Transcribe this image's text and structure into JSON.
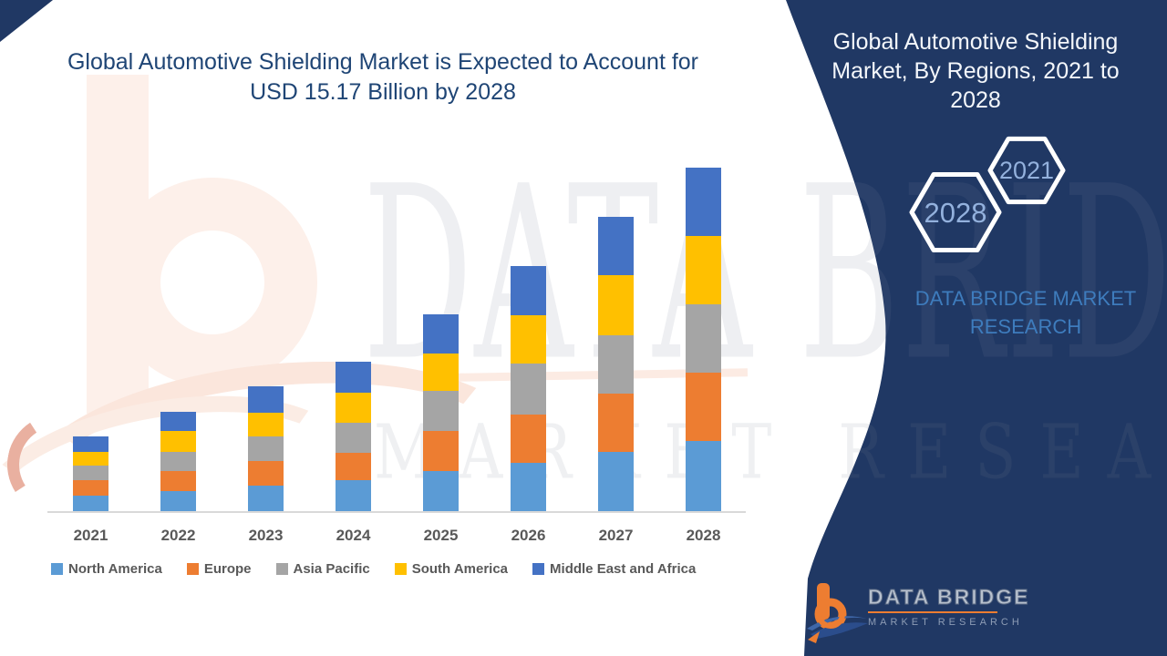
{
  "title": {
    "line1": "Global Automotive Shielding Market is Expected to Account for",
    "line2": "USD 15.17 Billion by 2028"
  },
  "panel": {
    "heading_line1": "Global Automotive Shielding",
    "heading_line2": "Market, By Regions,  2021 to",
    "heading_line3": "2028",
    "hexagon_back_label": "2028",
    "hexagon_front_label": "2021",
    "brand_text": "DATA BRIDGE MARKET RESEARCH",
    "panel_color": "#203864",
    "hexagon_label_color": "#93b1dd",
    "brand_text_color": "#3e7cbd"
  },
  "watermark": {
    "big_text": "DATA BRIDGE",
    "sub_text": "MARKET RESEARCH"
  },
  "footer_logo": {
    "name": "DATA BRIDGE",
    "subtitle": "MARKET RESEARCH"
  },
  "chart_data": {
    "type": "bar",
    "stacked": true,
    "title": "Global Automotive Shielding Market, By Regions, 2021 to 2028",
    "unit": "USD Billion",
    "annotation": "USD 15.17 Billion by 2028",
    "categories": [
      "2021",
      "2022",
      "2023",
      "2024",
      "2025",
      "2026",
      "2027",
      "2028"
    ],
    "series": [
      {
        "name": "North America",
        "color": "#5B9BD5",
        "values": [
          0.7,
          0.9,
          1.11,
          1.37,
          1.78,
          2.14,
          2.62,
          3.08
        ]
      },
      {
        "name": "Europe",
        "color": "#ED7D31",
        "values": [
          0.68,
          0.86,
          1.1,
          1.21,
          1.75,
          2.14,
          2.58,
          3.02
        ]
      },
      {
        "name": "Asia Pacific",
        "color": "#A5A5A5",
        "values": [
          0.62,
          0.85,
          1.08,
          1.34,
          1.79,
          2.22,
          2.56,
          3.02
        ]
      },
      {
        "name": "South America",
        "color": "#FFC000",
        "values": [
          0.62,
          0.92,
          1.07,
          1.32,
          1.63,
          2.14,
          2.66,
          3.04
        ]
      },
      {
        "name": "Middle East and Africa",
        "color": "#4472C4",
        "values": [
          0.68,
          0.86,
          1.15,
          1.36,
          1.74,
          2.18,
          2.58,
          3.01
        ]
      }
    ],
    "totals": [
      3.3,
      4.39,
      5.51,
      6.6,
      8.69,
      10.82,
      13.0,
      15.17
    ],
    "ylim": [
      0,
      15.5
    ],
    "grid": false,
    "legend_position": "bottom",
    "y_axis_labels_visible": false
  }
}
